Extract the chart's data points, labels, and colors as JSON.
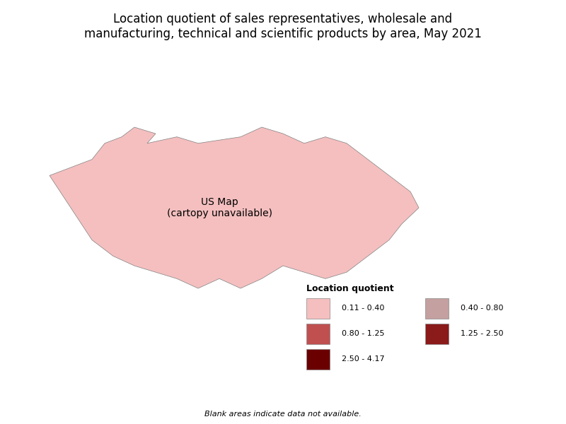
{
  "title_line1": "Location quotient of sales representatives, wholesale and",
  "title_line2": "manufacturing, technical and scientific products by area, May 2021",
  "title_fontsize": 12,
  "legend_title": "Location quotient",
  "legend_note": "Blank areas indicate data not available.",
  "colors": {
    "light_pink": "#F5BFBF",
    "mauve": "#C4A0A0",
    "medium_red": "#C05050",
    "dark_red": "#8B1A1A",
    "darkest_red": "#6B0000",
    "white": "#FFFFFF"
  },
  "legend_items": [
    {
      "label": "0.11 - 0.40",
      "color": "#F5BFBF",
      "col": 0
    },
    {
      "label": "0.80 - 1.25",
      "color": "#C05050",
      "col": 0
    },
    {
      "label": "2.50 - 4.17",
      "color": "#6B0000",
      "col": 0
    },
    {
      "label": "0.40 - 0.80",
      "color": "#C4A0A0",
      "col": 1
    },
    {
      "label": "1.25 - 2.50",
      "color": "#8B1A1A",
      "col": 1
    }
  ],
  "background_color": "#FFFFFF",
  "figsize": [
    8.0,
    6.0
  ],
  "dpi": 100
}
